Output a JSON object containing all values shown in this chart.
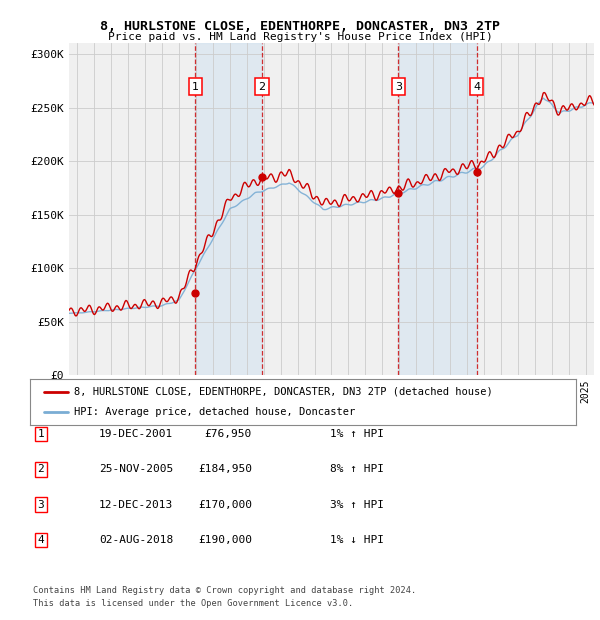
{
  "title1": "8, HURLSTONE CLOSE, EDENTHORPE, DONCASTER, DN3 2TP",
  "title2": "Price paid vs. HM Land Registry's House Price Index (HPI)",
  "ylabel_ticks": [
    "£0",
    "£50K",
    "£100K",
    "£150K",
    "£200K",
    "£250K",
    "£300K"
  ],
  "ytick_values": [
    0,
    50000,
    100000,
    150000,
    200000,
    250000,
    300000
  ],
  "ylim": [
    0,
    310000
  ],
  "xlim_start": 1994.5,
  "xlim_end": 2025.5,
  "sales": [
    {
      "num": 1,
      "date_label": "19-DEC-2001",
      "x": 2001.96,
      "price": 76950,
      "pct": "1%",
      "dir": "↑"
    },
    {
      "num": 2,
      "date_label": "25-NOV-2005",
      "x": 2005.9,
      "price": 184950,
      "pct": "8%",
      "dir": "↑"
    },
    {
      "num": 3,
      "date_label": "12-DEC-2013",
      "x": 2013.95,
      "price": 170000,
      "pct": "3%",
      "dir": "↑"
    },
    {
      "num": 4,
      "date_label": "02-AUG-2018",
      "x": 2018.58,
      "price": 190000,
      "pct": "1%",
      "dir": "↓"
    }
  ],
  "legend_line1": "8, HURLSTONE CLOSE, EDENTHORPE, DONCASTER, DN3 2TP (detached house)",
  "legend_line2": "HPI: Average price, detached house, Doncaster",
  "table_rows": [
    [
      1,
      "19-DEC-2001",
      "£76,950",
      "1% ↑ HPI"
    ],
    [
      2,
      "25-NOV-2005",
      "£184,950",
      "8% ↑ HPI"
    ],
    [
      3,
      "12-DEC-2013",
      "£170,000",
      "3% ↑ HPI"
    ],
    [
      4,
      "02-AUG-2018",
      "£190,000",
      "1% ↓ HPI"
    ]
  ],
  "footer1": "Contains HM Land Registry data © Crown copyright and database right 2024.",
  "footer2": "This data is licensed under the Open Government Licence v3.0.",
  "hpi_color": "#7aadd4",
  "price_color": "#cc0000",
  "bg_color": "#ffffff",
  "plot_bg_color": "#f0f0f0",
  "shade_color": "#cce0f0",
  "grid_color": "#cccccc"
}
